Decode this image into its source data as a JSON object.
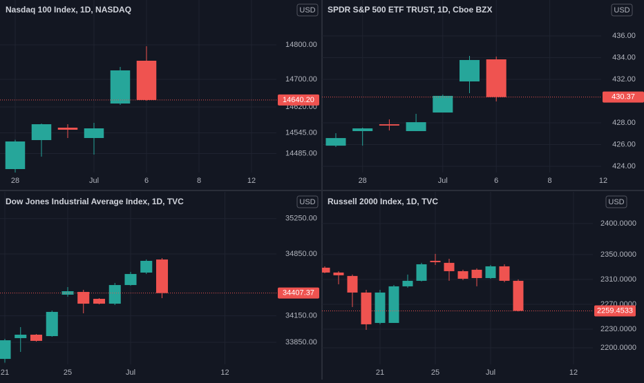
{
  "chart_data": [
    {
      "type": "candlestick",
      "title": "Nasdaq 100 Index, 1D, NASDAQ",
      "currency": "USD",
      "categories": [
        "28",
        null,
        null,
        "Jul",
        null,
        "6",
        null,
        "8",
        null,
        "12"
      ],
      "open": [
        14440,
        14524,
        14560,
        14530,
        14630,
        14754,
        null,
        null,
        null,
        null
      ],
      "high": [
        14525,
        14572,
        14570,
        14574,
        14736,
        14796,
        null,
        null,
        null,
        null
      ],
      "low": [
        14430,
        14476,
        14530,
        14482,
        14626,
        14638,
        null,
        null,
        null,
        null
      ],
      "close": [
        14520,
        14570,
        14554,
        14558,
        14726,
        14640.2,
        null,
        null,
        null,
        null
      ],
      "up_color": "#26a69a",
      "down_color": "#ef5350",
      "ylim": [
        14430,
        14930
      ],
      "yticks": [
        {
          "value": 14485,
          "label": "14485.00"
        },
        {
          "value": 14545,
          "label": "14545.00"
        },
        {
          "value": 14620,
          "label": "14620.00"
        },
        {
          "value": 14700,
          "label": "14700.00"
        },
        {
          "value": 14800,
          "label": "14800.00"
        }
      ],
      "last_price": {
        "value": 14640.2,
        "label": "14640.20"
      },
      "grid": true
    },
    {
      "type": "candlestick",
      "title": "SPDR S&P 500 ETF TRUST, 1D, Cboe BZX",
      "currency": "USD",
      "categories": [
        null,
        "28",
        null,
        null,
        "Jul",
        null,
        "6",
        null,
        "8",
        null,
        "12"
      ],
      "open": [
        425.9,
        427.24,
        427.87,
        427.24,
        428.95,
        431.81,
        433.84,
        null,
        null,
        null,
        null
      ],
      "high": [
        427.05,
        427.56,
        428.32,
        428.83,
        430.6,
        434.16,
        434.1,
        null,
        null,
        null,
        null
      ],
      "low": [
        425.78,
        425.9,
        427.3,
        427.24,
        428.95,
        430.73,
        429.97,
        null,
        null,
        null,
        null
      ],
      "close": [
        426.6,
        427.49,
        427.75,
        428.06,
        430.48,
        433.78,
        430.37,
        null,
        null,
        null,
        null
      ],
      "up_color": "#26a69a",
      "down_color": "#ef5350",
      "ylim": [
        423.43,
        439.3
      ],
      "yticks": [
        {
          "value": 424,
          "label": "424.00"
        },
        {
          "value": 426,
          "label": "426.00"
        },
        {
          "value": 428,
          "label": "428.00"
        },
        {
          "value": 432,
          "label": "432.00"
        },
        {
          "value": 434,
          "label": "434.00"
        },
        {
          "value": 436,
          "label": "436.00"
        }
      ],
      "last_price": {
        "value": 430.37,
        "label": "430.37"
      },
      "grid": true
    },
    {
      "type": "candlestick",
      "title": "Dow Jones Industrial Average Index, 1D, TVC",
      "currency": "USD",
      "categories": [
        "21",
        null,
        null,
        null,
        "25",
        null,
        null,
        null,
        "Jul",
        null,
        null,
        null,
        null,
        null,
        "12"
      ],
      "open": [
        33662,
        33897,
        33936,
        33920,
        34389,
        34420,
        34342,
        34287,
        34498,
        34639,
        34787,
        null,
        null,
        null,
        null
      ],
      "high": [
        33889,
        34022,
        33944,
        34209,
        34475,
        34444,
        34350,
        34522,
        34647,
        34788,
        34803,
        null,
        null,
        null,
        null
      ],
      "low": [
        33620,
        33741,
        33858,
        33912,
        34366,
        34178,
        34280,
        34272,
        34491,
        34623,
        34350,
        null,
        null,
        null,
        null
      ],
      "close": [
        33873,
        33936,
        33866,
        34194,
        34428,
        34287,
        34287,
        34498,
        34623,
        34772,
        34407.37,
        null,
        null,
        null,
        null
      ],
      "up_color": "#26a69a",
      "down_color": "#ef5350",
      "ylim": [
        33600,
        35553
      ],
      "yticks": [
        {
          "value": 33850,
          "label": "33850.00"
        },
        {
          "value": 34150,
          "label": "34150.00"
        },
        {
          "value": 34850,
          "label": "34850.00"
        },
        {
          "value": 35250,
          "label": "35250.00"
        }
      ],
      "last_price": {
        "value": 34407.37,
        "label": "34407.37"
      },
      "grid": true
    },
    {
      "type": "candlestick",
      "title": "Russell 2000 Index, 1D, TVC",
      "currency": "USD",
      "categories": [
        null,
        null,
        null,
        null,
        "21",
        null,
        null,
        null,
        "25",
        null,
        null,
        null,
        "Jul",
        null,
        null,
        null,
        null,
        null,
        "12"
      ],
      "open": [
        2328.9,
        2321.1,
        2315.6,
        2288.9,
        2240,
        2240,
        2298.9,
        2307.8,
        2340,
        2336.7,
        2323.3,
        2325.6,
        2312.2,
        2331.1,
        2307.8,
        null,
        null,
        null,
        null
      ],
      "high": [
        2331.1,
        2323.3,
        2317.8,
        2293.3,
        2293.3,
        2301.1,
        2317.8,
        2336.7,
        2351.1,
        2343.3,
        2325.6,
        2327.8,
        2333.3,
        2334.4,
        2310,
        null,
        null,
        null,
        null
      ],
      "low": [
        2320,
        2302.2,
        2265.6,
        2228.9,
        2237.8,
        2240,
        2296.7,
        2306.7,
        2333.3,
        2307.8,
        2308.9,
        2298.9,
        2311.1,
        2305.6,
        2258.5,
        null,
        null,
        null,
        null
      ],
      "close": [
        2321.1,
        2316.7,
        2288.9,
        2237.8,
        2288.9,
        2298.9,
        2307.8,
        2334.4,
        2337.8,
        2323.3,
        2311.1,
        2312.2,
        2331.1,
        2307.8,
        2259.4533,
        null,
        null,
        null,
        null
      ],
      "up_color": "#26a69a",
      "down_color": "#ef5350",
      "ylim": [
        2173.3,
        2451
      ],
      "yticks": [
        {
          "value": 2200,
          "label": "2200.0000"
        },
        {
          "value": 2230,
          "label": "2230.0000"
        },
        {
          "value": 2270,
          "label": "2270.0000"
        },
        {
          "value": 2310,
          "label": "2310.0000"
        },
        {
          "value": 2350,
          "label": "2350.0000"
        },
        {
          "value": 2400,
          "label": "2400.0000"
        }
      ],
      "last_price": {
        "value": 2259.4533,
        "label": "2259.4533"
      },
      "grid": true
    }
  ]
}
